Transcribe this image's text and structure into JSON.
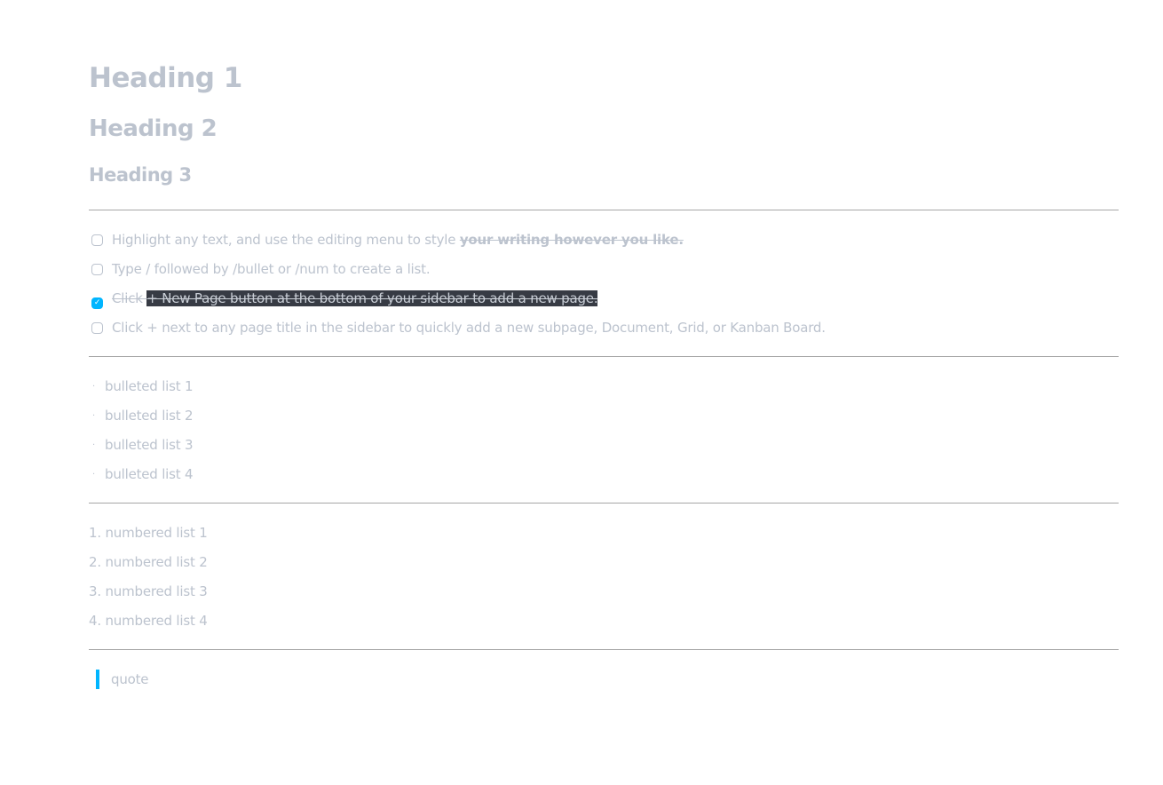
{
  "headings": {
    "h1": "Heading 1",
    "h2": "Heading 2",
    "h3": "Heading 3"
  },
  "tasks": [
    {
      "text": "Highlight any text, and use the editing menu to style ",
      "bold": "your writing however you like.",
      "checked": false
    },
    {
      "text": "Type / followed by /bullet or /num to create a list.",
      "checked": false
    },
    {
      "text": "Click ",
      "selected": "+ New Page button at the bottom of your sidebar to add a new page.",
      "checked": true
    },
    {
      "text": "Click + next to any page title in the sidebar to quickly add a new subpage, Document, Grid, or Kanban Board.",
      "checked": false
    }
  ],
  "bullets": [
    "bulleted list 1",
    "bulleted list 2",
    "bulleted list 3",
    "bulleted list 4"
  ],
  "bullet_glyph": "·",
  "numbered": [
    {
      "n": "1.",
      "text": "numbered list 1"
    },
    {
      "n": "2.",
      "text": "numbered list 2"
    },
    {
      "n": "3.",
      "text": "numbered list 3"
    },
    {
      "n": "4.",
      "text": "numbered list 4"
    }
  ],
  "quote": "quote",
  "check_glyph": "✓",
  "colors": {
    "text": "#bcc3ce",
    "accent": "#00b5ff",
    "selection": "#373b44"
  }
}
